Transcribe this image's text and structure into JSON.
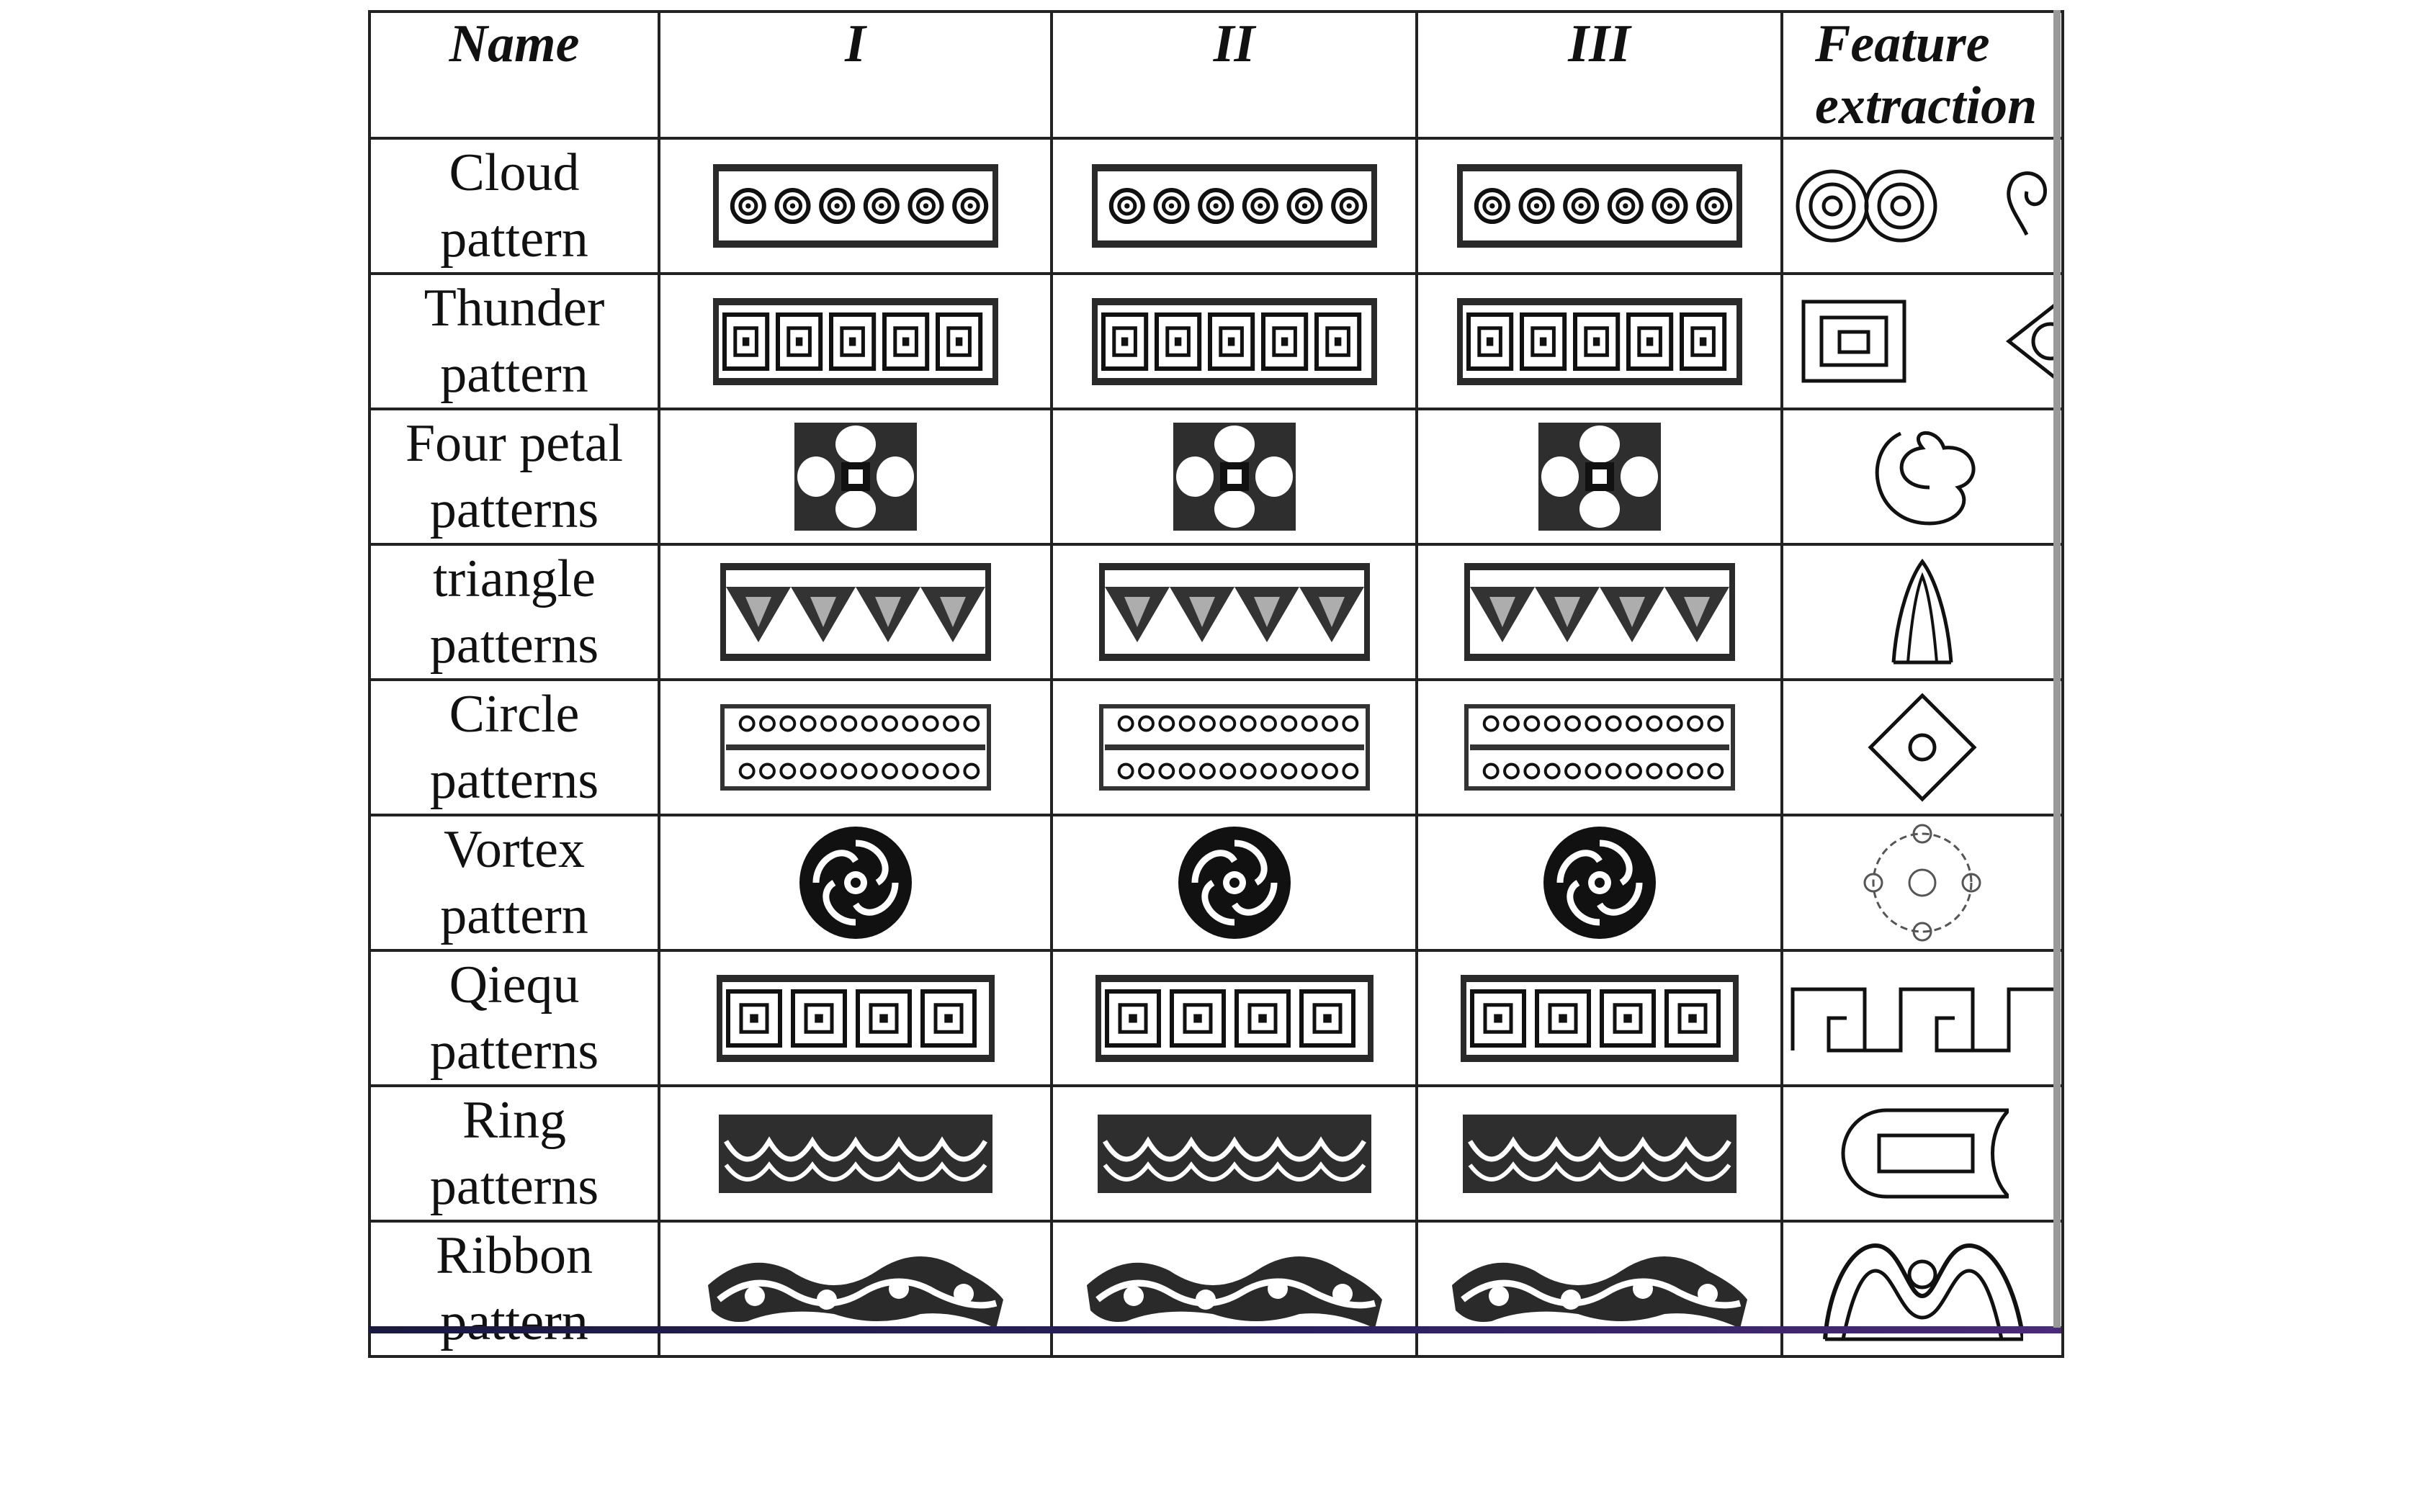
{
  "table": {
    "headers": [
      "Name",
      "I",
      "II",
      "III",
      "Feature extraction"
    ],
    "header_feature": [
      "Feature",
      "extraction"
    ],
    "rows": [
      {
        "name": [
          "Cloud",
          "pattern"
        ],
        "icons": [
          "cloud-band-icon",
          "cloud-band-icon",
          "cloud-band-icon",
          "cloud-spiral-icon"
        ]
      },
      {
        "name": [
          "Thunder",
          "pattern"
        ],
        "icons": [
          "thunder-band-icon",
          "thunder-band-icon",
          "thunder-band-icon",
          "square-spiral-icon"
        ]
      },
      {
        "name": [
          "Four petal",
          "patterns"
        ],
        "icons": [
          "four-petal-icon",
          "four-petal-icon",
          "four-petal-icon",
          "petal-curve-icon"
        ]
      },
      {
        "name": [
          "triangle",
          "patterns"
        ],
        "icons": [
          "triangle-band-icon",
          "triangle-band-icon",
          "triangle-band-icon",
          "arch-icon"
        ]
      },
      {
        "name": [
          "Circle",
          "patterns"
        ],
        "icons": [
          "circle-band-icon",
          "circle-band-icon",
          "circle-band-icon",
          "diamond-circle-icon"
        ]
      },
      {
        "name": [
          "Vortex",
          "pattern"
        ],
        "icons": [
          "vortex-disc-icon",
          "vortex-disc-icon",
          "vortex-disc-icon",
          "dotted-ring-icon"
        ]
      },
      {
        "name": [
          "Qiequ",
          "patterns"
        ],
        "icons": [
          "qiequ-band-icon",
          "qiequ-band-icon",
          "qiequ-band-icon",
          "meander-icon"
        ]
      },
      {
        "name": [
          "Ring",
          "patterns"
        ],
        "icons": [
          "ring-band-icon",
          "ring-band-icon",
          "ring-band-icon",
          "rounded-rect-icon"
        ]
      },
      {
        "name": [
          "Ribbon",
          "pattern"
        ],
        "icons": [
          "ribbon-band-icon",
          "ribbon-band-icon",
          "ribbon-band-icon",
          "wave-icon"
        ]
      }
    ]
  }
}
